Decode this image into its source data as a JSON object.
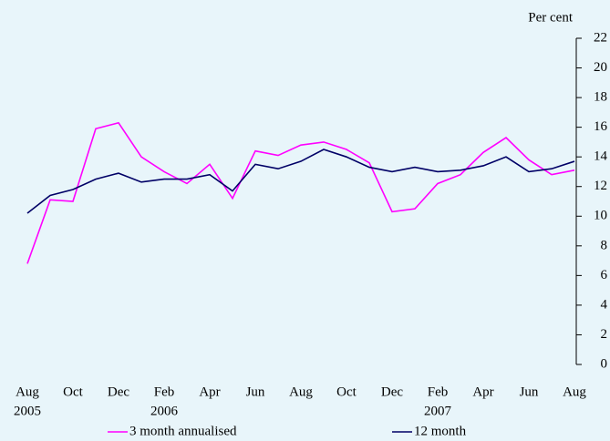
{
  "chart_data": {
    "type": "line",
    "y_label": "Per cent",
    "categories": [
      "Aug",
      null,
      "Oct",
      null,
      "Dec",
      null,
      "Feb",
      null,
      "Apr",
      null,
      "Jun",
      null,
      "Aug",
      null,
      "Oct",
      null,
      "Dec",
      null,
      "Feb",
      null,
      "Apr",
      null,
      "Jun",
      null,
      "Aug"
    ],
    "years": [
      "2005",
      null,
      null,
      null,
      null,
      null,
      "2006",
      null,
      null,
      null,
      null,
      null,
      null,
      null,
      null,
      null,
      null,
      null,
      "2007",
      null,
      null,
      null,
      null,
      null,
      null
    ],
    "series": [
      {
        "name": "3 month annualised",
        "color": "#ff00ff",
        "values": [
          6.8,
          11.1,
          11.0,
          15.9,
          16.3,
          14.0,
          13.0,
          12.2,
          13.5,
          11.2,
          14.4,
          14.1,
          14.8,
          15.0,
          14.5,
          13.6,
          10.3,
          10.5,
          12.2,
          12.8,
          14.3,
          15.3,
          13.8,
          12.8,
          13.1
        ]
      },
      {
        "name": "12 month",
        "color": "#000066",
        "values": [
          10.2,
          11.4,
          11.8,
          12.5,
          12.9,
          12.3,
          12.5,
          12.5,
          12.8,
          11.7,
          13.5,
          13.2,
          13.7,
          14.5,
          14.0,
          13.3,
          13.0,
          13.3,
          13.0,
          13.1,
          13.4,
          14.0,
          13.0,
          13.2,
          13.7
        ]
      }
    ],
    "ylim": [
      0,
      22
    ],
    "yticks": [
      0,
      2,
      4,
      6,
      8,
      10,
      12,
      14,
      16,
      18,
      20,
      22
    ]
  }
}
